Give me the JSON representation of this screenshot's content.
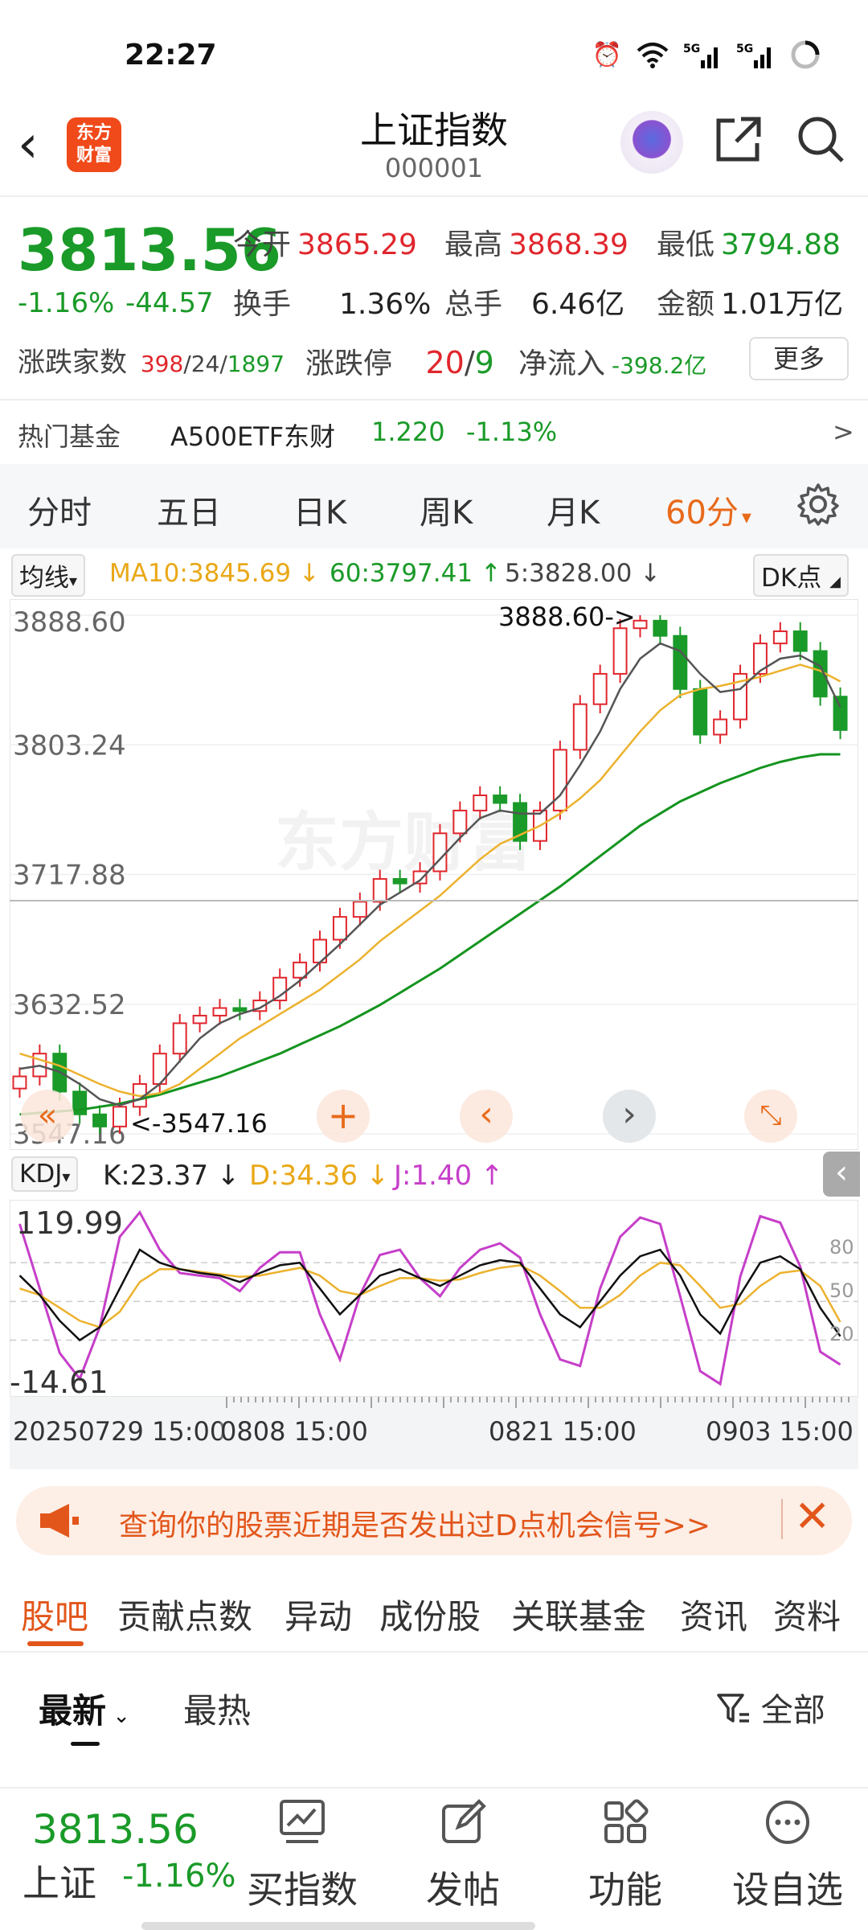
{
  "status": {
    "time": "22:27"
  },
  "header": {
    "title": "上证指数",
    "code": "000001",
    "logo": "东方财富",
    "logo_line1": "东方",
    "logo_line2": "财富"
  },
  "quote": {
    "price": "3813.56",
    "pct": "-1.16%",
    "chg": "-44.57",
    "open_label": "今开",
    "open": "3865.29",
    "high_label": "最高",
    "high": "3868.39",
    "low_label": "最低",
    "low": "3794.88",
    "turnover_label": "换手",
    "turnover": "1.36%",
    "volume_label": "总手",
    "volume": "6.46亿",
    "amount_label": "金额",
    "amount": "1.01万亿",
    "breadth_label": "涨跌家数",
    "up": "398",
    "flat": "24",
    "down": "1897",
    "limit_label": "涨跌停",
    "limit_up": "20",
    "limit_down": "9",
    "inflow_label": "净流入",
    "inflow": "-398.2亿",
    "more": "更多"
  },
  "fund": {
    "label": "热门基金",
    "name": "A500ETF东财",
    "price": "1.220",
    "pct": "-1.13%",
    "arrow": ">"
  },
  "period_tabs": [
    "分时",
    "五日",
    "日K",
    "周K",
    "月K",
    "60分"
  ],
  "period_arrow": "▾",
  "ma": {
    "label": "均线",
    "ma10": "MA10:3845.69",
    "ma60": "60:3797.41",
    "ma5": "5:3828.00",
    "dk": "DK点"
  },
  "kchart": {
    "y_labels": [
      "3888.60",
      "3803.24",
      "3717.88",
      "3632.52",
      "3547.16"
    ],
    "max_label": "3888.60->",
    "min_label": "<-3547.16",
    "watermark": "东方财富"
  },
  "kdj": {
    "label": "KDJ",
    "k": "K:23.37",
    "d": "D:34.36",
    "j": "J:1.40",
    "y_top": "119.99",
    "y_bottom": "-14.61",
    "levels": [
      "80",
      "50",
      "20"
    ]
  },
  "xaxis": [
    "20250729 15:00",
    "0808 15:00",
    "0821 15:00",
    "0903 15:00"
  ],
  "banner": {
    "text": "查询你的股票近期是否发出过D点机会信号>>"
  },
  "news_tabs": [
    "股吧",
    "贡献点数",
    "异动",
    "成份股",
    "关联基金",
    "资讯",
    "资料"
  ],
  "sort": {
    "latest": "最新",
    "hot": "最热",
    "filter": "全部"
  },
  "bottom": {
    "price": "3813.56",
    "name": "上证",
    "pct": "-1.16%",
    "items": [
      "买指数",
      "发帖",
      "功能",
      "设自选"
    ]
  },
  "chart_data": {
    "type": "candlestick",
    "ylim": [
      3547.16,
      3888.6
    ],
    "close": [
      3585,
      3600,
      3575,
      3560,
      3552,
      3565,
      3580,
      3600,
      3620,
      3625,
      3630,
      3628,
      3635,
      3650,
      3660,
      3675,
      3690,
      3700,
      3715,
      3712,
      3720,
      3745,
      3760,
      3770,
      3765,
      3740,
      3760,
      3800,
      3830,
      3850,
      3880,
      3885,
      3875,
      3840,
      3810,
      3820,
      3850,
      3870,
      3878,
      3865,
      3835,
      3813
    ],
    "ma5": [
      3590,
      3592,
      3588,
      3580,
      3570,
      3566,
      3570,
      3580,
      3595,
      3610,
      3620,
      3626,
      3630,
      3638,
      3648,
      3660,
      3672,
      3685,
      3698,
      3706,
      3714,
      3728,
      3742,
      3755,
      3760,
      3758,
      3758,
      3770,
      3790,
      3812,
      3840,
      3860,
      3870,
      3865,
      3850,
      3838,
      3840,
      3852,
      3860,
      3862,
      3855,
      3828
    ],
    "ma10": [
      3600,
      3596,
      3592,
      3586,
      3580,
      3575,
      3572,
      3574,
      3580,
      3590,
      3600,
      3610,
      3618,
      3626,
      3634,
      3642,
      3652,
      3662,
      3674,
      3684,
      3694,
      3704,
      3716,
      3728,
      3738,
      3744,
      3750,
      3758,
      3768,
      3780,
      3796,
      3812,
      3826,
      3836,
      3840,
      3842,
      3845,
      3848,
      3852,
      3856,
      3852,
      3845
    ],
    "ma60": [
      3560,
      3561,
      3562,
      3563,
      3565,
      3567,
      3570,
      3573,
      3577,
      3581,
      3585,
      3590,
      3595,
      3600,
      3606,
      3612,
      3618,
      3625,
      3632,
      3640,
      3648,
      3656,
      3665,
      3674,
      3683,
      3692,
      3701,
      3710,
      3720,
      3730,
      3740,
      3750,
      3758,
      3766,
      3772,
      3778,
      3783,
      3788,
      3792,
      3795,
      3797,
      3797
    ],
    "kdj_ylim": [
      -14.61,
      119.99
    ],
    "K": [
      70,
      55,
      35,
      20,
      30,
      60,
      90,
      80,
      75,
      72,
      70,
      65,
      72,
      78,
      80,
      60,
      40,
      55,
      70,
      75,
      68,
      62,
      70,
      78,
      82,
      80,
      60,
      40,
      30,
      50,
      70,
      85,
      90,
      70,
      40,
      25,
      55,
      80,
      85,
      75,
      45,
      23
    ],
    "D": [
      60,
      55,
      45,
      35,
      30,
      42,
      65,
      75,
      75,
      73,
      71,
      69,
      70,
      73,
      76,
      70,
      58,
      55,
      62,
      68,
      68,
      66,
      67,
      72,
      76,
      78,
      70,
      58,
      45,
      45,
      55,
      70,
      80,
      78,
      62,
      45,
      48,
      62,
      72,
      74,
      62,
      34
    ],
    "J": [
      110,
      60,
      10,
      -10,
      30,
      100,
      119,
      90,
      72,
      70,
      68,
      58,
      76,
      88,
      88,
      40,
      5,
      55,
      86,
      90,
      68,
      54,
      76,
      90,
      95,
      84,
      40,
      5,
      0,
      60,
      100,
      115,
      110,
      54,
      -4,
      -14,
      69,
      116,
      111,
      77,
      11,
      1
    ]
  }
}
